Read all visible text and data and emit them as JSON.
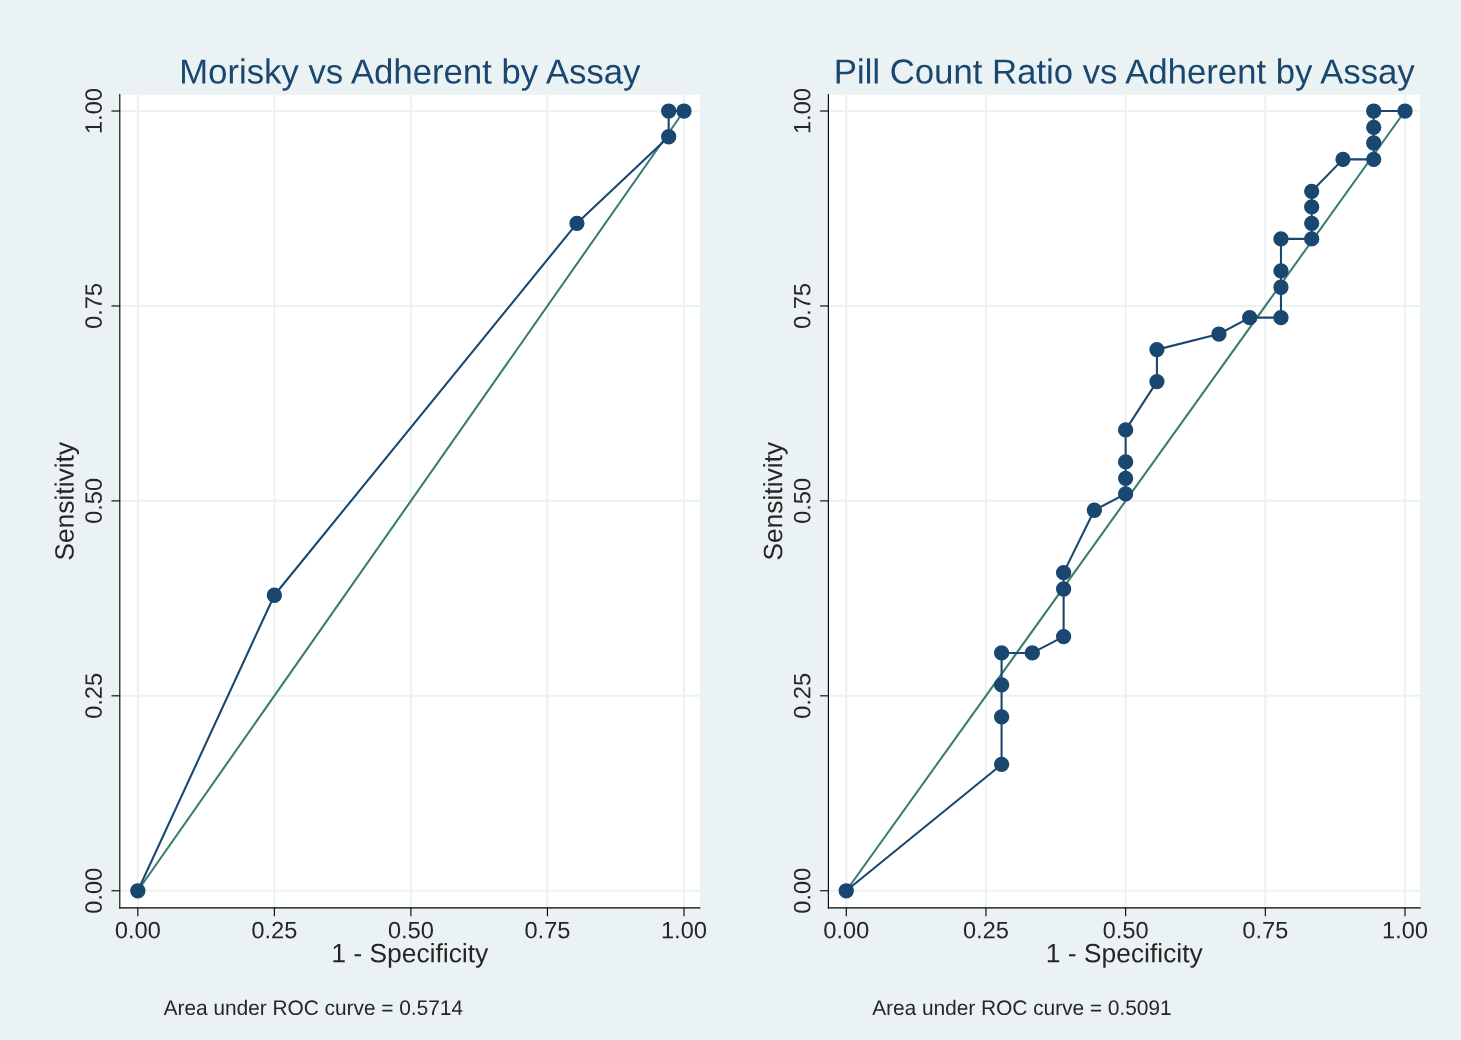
{
  "chart_data": [
    {
      "type": "line",
      "title": "Morisky vs Adherent by Assay",
      "xlabel": "1 - Specificity",
      "ylabel": "Sensitivity",
      "xlim": [
        -0.033,
        1.029
      ],
      "ylim": [
        -0.022,
        1.021
      ],
      "xticks": [
        {
          "value": 0,
          "label": "0.00"
        },
        {
          "value": 0.25,
          "label": "0.25"
        },
        {
          "value": 0.5,
          "label": "0.50"
        },
        {
          "value": 0.75,
          "label": "0.75"
        },
        {
          "value": 1,
          "label": "1.00"
        }
      ],
      "yticks": [
        {
          "value": 0,
          "label": "0.00"
        },
        {
          "value": 0.25,
          "label": "0.25"
        },
        {
          "value": 0.5,
          "label": "0.50"
        },
        {
          "value": 0.75,
          "label": "0.75"
        },
        {
          "value": 1,
          "label": "1.00"
        }
      ],
      "grid": true,
      "annotations": [
        "Area under ROC curve = 0.5714"
      ],
      "series": [
        {
          "color": "#1a476f",
          "marker": "circle",
          "x": [
            0,
            0.25,
            0.804,
            0.972,
            0.972,
            1
          ],
          "values": [
            0,
            0.379,
            0.856,
            0.967,
            1.0,
            1.0
          ]
        },
        {
          "color": "#3a7f6e",
          "marker": "none",
          "x": [
            0,
            1
          ],
          "values": [
            0,
            1
          ]
        }
      ]
    },
    {
      "type": "line",
      "title": "Pill Count Ratio vs Adherent by Assay",
      "xlabel": "1 - Specificity",
      "ylabel": "Sensitivity",
      "xlim": [
        -0.032,
        1.027
      ],
      "ylim": [
        -0.022,
        1.021
      ],
      "xticks": [
        {
          "value": 0,
          "label": "0.00"
        },
        {
          "value": 0.25,
          "label": "0.25"
        },
        {
          "value": 0.5,
          "label": "0.50"
        },
        {
          "value": 0.75,
          "label": "0.75"
        },
        {
          "value": 1,
          "label": "1.00"
        }
      ],
      "yticks": [
        {
          "value": 0,
          "label": "0.00"
        },
        {
          "value": 0.25,
          "label": "0.25"
        },
        {
          "value": 0.5,
          "label": "0.50"
        },
        {
          "value": 0.75,
          "label": "0.75"
        },
        {
          "value": 1,
          "label": "1.00"
        }
      ],
      "grid": true,
      "annotations": [
        "Area under ROC curve = 0.5091"
      ],
      "series": [
        {
          "color": "#1a476f",
          "marker": "circle",
          "x": [
            0,
            0.278,
            0.278,
            0.278,
            0.278,
            0.333,
            0.389,
            0.389,
            0.389,
            0.444,
            0.5,
            0.5,
            0.5,
            0.5,
            0.556,
            0.556,
            0.667,
            0.722,
            0.778,
            0.778,
            0.778,
            0.778,
            0.833,
            0.833,
            0.833,
            0.833,
            0.889,
            0.944,
            0.944,
            0.944,
            0.944,
            1
          ],
          "values": [
            0,
            0.162,
            0.223,
            0.264,
            0.305,
            0.305,
            0.326,
            0.387,
            0.408,
            0.488,
            0.509,
            0.529,
            0.55,
            0.591,
            0.653,
            0.694,
            0.714,
            0.735,
            0.735,
            0.774,
            0.795,
            0.836,
            0.836,
            0.856,
            0.877,
            0.897,
            0.938,
            0.938,
            0.959,
            0.979,
            1.0,
            1.0
          ]
        },
        {
          "color": "#3a7f6e",
          "marker": "none",
          "x": [
            0,
            1
          ],
          "values": [
            0,
            1
          ]
        }
      ]
    }
  ]
}
